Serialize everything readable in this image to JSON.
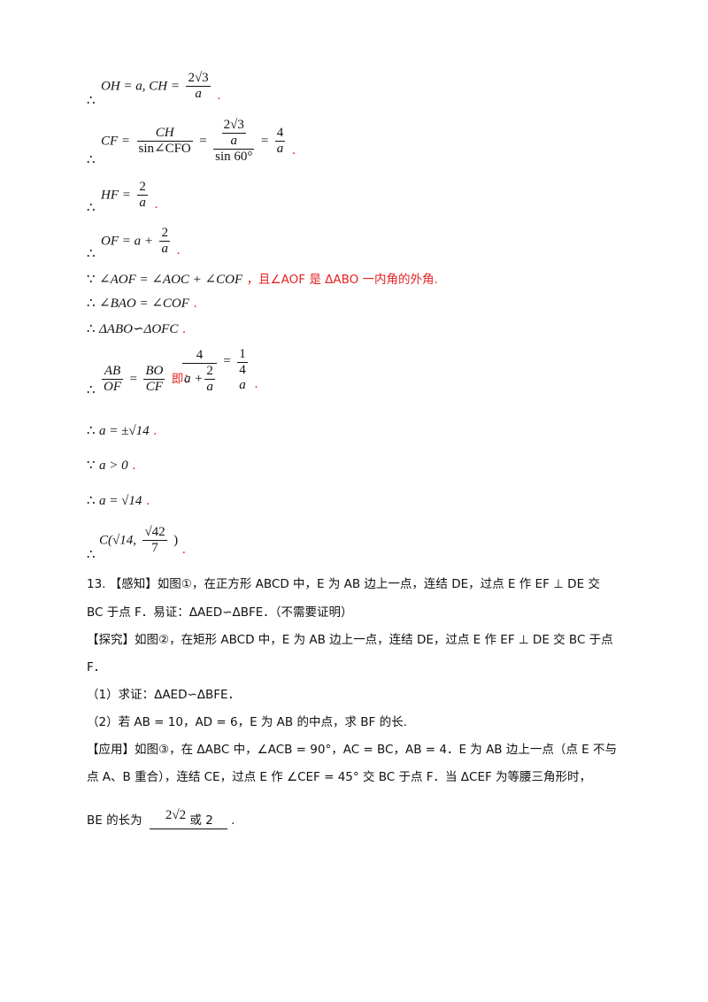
{
  "lines": {
    "l1": {
      "therefore": "∴",
      "lhs": "OH = a, CH =",
      "num": "2√3",
      "den": "a",
      "end": "."
    },
    "l2": {
      "therefore": "∴",
      "lhs": "CF =",
      "f1_num": "CH",
      "f1_den": "sin∠CFO",
      "eq1": "=",
      "f2_num_num": "2√3",
      "f2_num_den": "a",
      "f2_den": "sin 60°",
      "eq2": "=",
      "f3_num": "4",
      "f3_den": "a",
      "end": "."
    },
    "l3": {
      "therefore": "∴",
      "lhs": "HF =",
      "num": "2",
      "den": "a",
      "end": "."
    },
    "l4": {
      "therefore": "∴",
      "lhs": "OF = a +",
      "num": "2",
      "den": "a",
      "end": "."
    },
    "l5": {
      "because": "∵",
      "expr": "∠AOF = ∠AOC + ∠COF",
      "text": "，且∠AOF 是 ΔABO 一内角的外角."
    },
    "l6": {
      "therefore": "∴",
      "expr": "∠BAO = ∠COF",
      "end": "."
    },
    "l7": {
      "therefore": "∴",
      "expr": "ΔABO∽ΔOFC",
      "end": "."
    },
    "l8": {
      "therefore": "∴",
      "f1_num": "AB",
      "f1_den": "OF",
      "eq": "=",
      "f2_num": "BO",
      "f2_den": "CF",
      "label": "即：",
      "g_num": "4",
      "g_den_a": "a +",
      "g_den_num": "2",
      "g_den_den": "a",
      "eq2": "=",
      "g2_num": "1",
      "g2_den_top": "4",
      "g2_den": "a",
      "end": "."
    },
    "l9": {
      "therefore": "∴",
      "expr": "a = ±√14",
      "end": "."
    },
    "l10": {
      "because": "∵",
      "expr": "a > 0",
      "end": "."
    },
    "l11": {
      "therefore": "∴",
      "expr": "a = √14",
      "end": "."
    },
    "l12": {
      "therefore": "∴",
      "pre": "C(√14,",
      "num": "√42",
      "den": "7",
      "post": ")",
      "end": "."
    }
  },
  "problem": {
    "p1": "13. 【感知】如图①，在正方形 ABCD 中，E 为 AB 边上一点，连结 DE，过点 E 作 EF ⊥ DE 交",
    "p2": "BC 于点 F．易证：ΔAED∽ΔBFE．（不需要证明）",
    "p3": "【探究】如图②，在矩形 ABCD 中，E 为 AB 边上一点，连结 DE，过点 E 作 EF ⊥ DE 交 BC 于点",
    "p4": "F．",
    "p5": "（1）求证：ΔAED∽ΔBFE．",
    "p6": "（2）若 AB = 10，AD = 6，E 为 AB 的中点，求 BF 的长.",
    "p7": "【应用】如图③，在 ΔABC 中，∠ACB = 90°，AC = BC，AB = 4．E 为 AB 边上一点（点 E 不与",
    "p8": "点 A、B 重合），连结 CE，过点 E 作 ∠CEF = 45° 交 BC 于点 F．当 ΔCEF 为等腰三角形时，",
    "p9_pre": "BE 的长为",
    "p9_ans_a": "2√2",
    "p9_ans_b": "或 2",
    "p9_end": "."
  }
}
